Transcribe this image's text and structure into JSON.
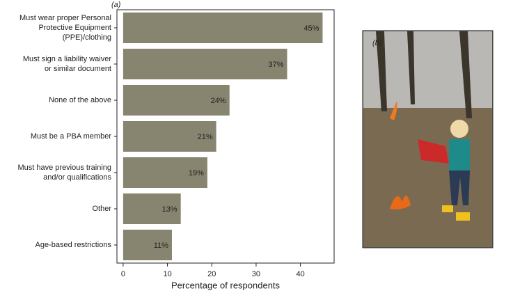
{
  "chart_data": {
    "type": "bar",
    "orientation": "horizontal",
    "panel_label": "(a)",
    "photo_label": "(b)",
    "categories": [
      "Must wear proper Personal\nProtective Equipment\n(PPE)/clothing",
      "Must sign a liability waiver\nor similar document",
      "None of the above",
      "Must be a PBA member",
      "Must have previous training\nand/or qualifications",
      "Other",
      "Age-based restrictions"
    ],
    "values": [
      45,
      37,
      24,
      21,
      19,
      13,
      11
    ],
    "value_labels": [
      "45%",
      "37%",
      "24%",
      "21%",
      "19%",
      "13%",
      "11%"
    ],
    "color": "#878470",
    "xlabel": "Percentage of respondents",
    "xlim": [
      -1.4,
      47.6
    ],
    "xticks": [
      0,
      10,
      20,
      30,
      40
    ],
    "grid": false
  }
}
